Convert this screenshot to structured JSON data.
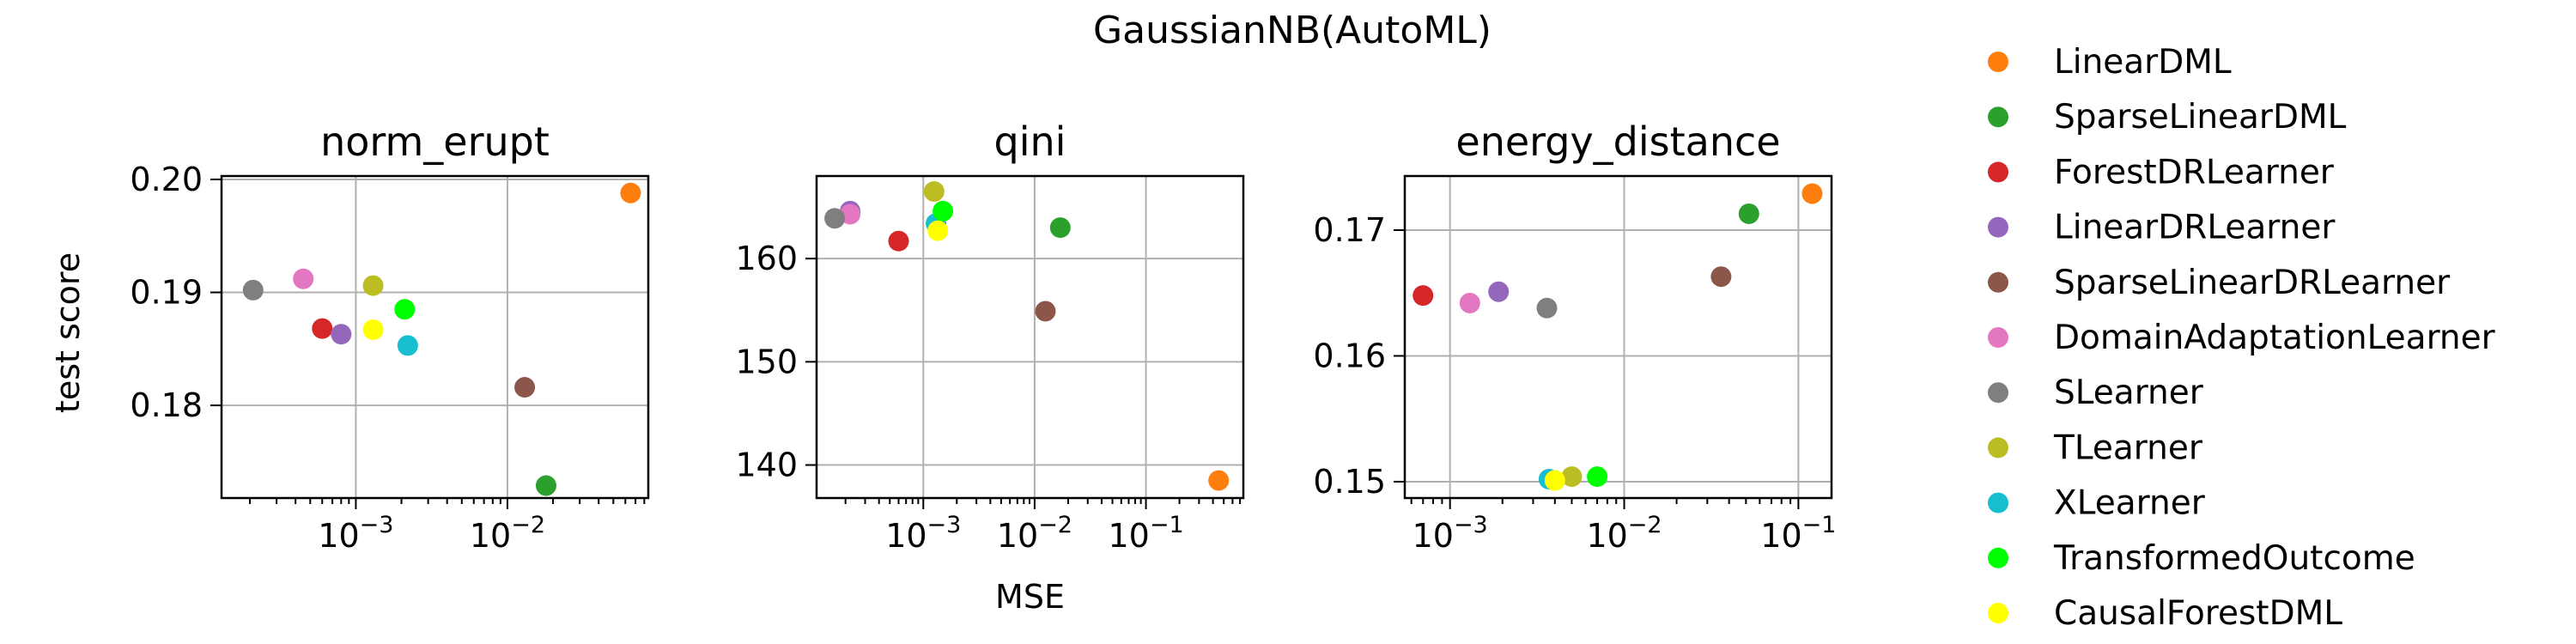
{
  "figure_title": "GaussianNB(AutoML)",
  "colors": {
    "LinearDML": "#ff7f0e",
    "SparseLinearDML": "#2ca02c",
    "ForestDRLearner": "#d62728",
    "LinearDRLearner": "#9467bd",
    "SparseLinearDRLearner": "#8c564b",
    "DomainAdaptationLearner": "#e377c2",
    "SLearner": "#7f7f7f",
    "TLearner": "#bcbd22",
    "XLearner": "#17becf",
    "TransformedOutcome": "#00ff00",
    "CausalForestDML": "#ffff00"
  },
  "legend": {
    "items": [
      "LinearDML",
      "SparseLinearDML",
      "ForestDRLearner",
      "LinearDRLearner",
      "SparseLinearDRLearner",
      "DomainAdaptationLearner",
      "SLearner",
      "TLearner",
      "XLearner",
      "TransformedOutcome",
      "CausalForestDML"
    ]
  },
  "chart_data": [
    {
      "type": "scatter",
      "title": "norm_erupt",
      "xlabel": "",
      "ylabel": "test score",
      "xscale": "log",
      "xlim": [
        0.00013,
        0.085
      ],
      "ylim": [
        0.1718,
        0.2003
      ],
      "xticks": [
        {
          "value": 0.001,
          "base": "10",
          "exp": "−3"
        },
        {
          "value": 0.01,
          "base": "10",
          "exp": "−2"
        }
      ],
      "yticks": [
        {
          "value": 0.18,
          "label": "0.18"
        },
        {
          "value": 0.19,
          "label": "0.19"
        },
        {
          "value": 0.2,
          "label": "0.20"
        }
      ],
      "grid": true,
      "points": [
        {
          "series": "LinearDML",
          "x": 0.065,
          "y": 0.1988
        },
        {
          "series": "SparseLinearDML",
          "x": 0.018,
          "y": 0.1729
        },
        {
          "series": "ForestDRLearner",
          "x": 0.0006,
          "y": 0.1868
        },
        {
          "series": "LinearDRLearner",
          "x": 0.0008,
          "y": 0.1863
        },
        {
          "series": "SparseLinearDRLearner",
          "x": 0.013,
          "y": 0.1816
        },
        {
          "series": "DomainAdaptationLearner",
          "x": 0.00045,
          "y": 0.1912
        },
        {
          "series": "SLearner",
          "x": 0.00021,
          "y": 0.1902
        },
        {
          "series": "TLearner",
          "x": 0.0013,
          "y": 0.1906
        },
        {
          "series": "XLearner",
          "x": 0.0022,
          "y": 0.1853
        },
        {
          "series": "TransformedOutcome",
          "x": 0.0021,
          "y": 0.1885
        },
        {
          "series": "CausalForestDML",
          "x": 0.0013,
          "y": 0.1867
        }
      ]
    },
    {
      "type": "scatter",
      "title": "qini",
      "xlabel": "MSE",
      "ylabel": "",
      "xscale": "log",
      "xlim": [
        0.00011,
        0.75
      ],
      "ylim": [
        136.8,
        168.0
      ],
      "xticks": [
        {
          "value": 0.001,
          "base": "10",
          "exp": "−3"
        },
        {
          "value": 0.01,
          "base": "10",
          "exp": "−2"
        },
        {
          "value": 0.1,
          "base": "10",
          "exp": "−1"
        }
      ],
      "yticks": [
        {
          "value": 140,
          "label": "140"
        },
        {
          "value": 150,
          "label": "150"
        },
        {
          "value": 160,
          "label": "160"
        }
      ],
      "grid": true,
      "points": [
        {
          "series": "LinearDML",
          "x": 0.45,
          "y": 138.5
        },
        {
          "series": "SparseLinearDML",
          "x": 0.017,
          "y": 163.0
        },
        {
          "series": "ForestDRLearner",
          "x": 0.0006,
          "y": 161.7
        },
        {
          "series": "LinearDRLearner",
          "x": 0.00022,
          "y": 164.6
        },
        {
          "series": "SparseLinearDRLearner",
          "x": 0.0125,
          "y": 154.9
        },
        {
          "series": "DomainAdaptationLearner",
          "x": 0.00022,
          "y": 164.3
        },
        {
          "series": "SLearner",
          "x": 0.00016,
          "y": 163.9
        },
        {
          "series": "TLearner",
          "x": 0.00125,
          "y": 166.5
        },
        {
          "series": "XLearner",
          "x": 0.0013,
          "y": 163.4
        },
        {
          "series": "TransformedOutcome",
          "x": 0.0015,
          "y": 164.6
        },
        {
          "series": "CausalForestDML",
          "x": 0.00135,
          "y": 162.7
        }
      ]
    },
    {
      "type": "scatter",
      "title": "energy_distance",
      "xlabel": "",
      "ylabel": "",
      "xscale": "log",
      "xlim": [
        0.00055,
        0.155
      ],
      "ylim": [
        0.1487,
        0.1743
      ],
      "xticks": [
        {
          "value": 0.001,
          "base": "10",
          "exp": "−3"
        },
        {
          "value": 0.01,
          "base": "10",
          "exp": "−2"
        },
        {
          "value": 0.1,
          "base": "10",
          "exp": "−1"
        }
      ],
      "yticks": [
        {
          "value": 0.15,
          "label": "0.15"
        },
        {
          "value": 0.16,
          "label": "0.16"
        },
        {
          "value": 0.17,
          "label": "0.17"
        }
      ],
      "grid": true,
      "points": [
        {
          "series": "LinearDML",
          "x": 0.12,
          "y": 0.1729
        },
        {
          "series": "SparseLinearDML",
          "x": 0.052,
          "y": 0.1713
        },
        {
          "series": "ForestDRLearner",
          "x": 0.0007,
          "y": 0.1648
        },
        {
          "series": "LinearDRLearner",
          "x": 0.0019,
          "y": 0.1651
        },
        {
          "series": "SparseLinearDRLearner",
          "x": 0.036,
          "y": 0.1663
        },
        {
          "series": "DomainAdaptationLearner",
          "x": 0.0013,
          "y": 0.1642
        },
        {
          "series": "SLearner",
          "x": 0.0036,
          "y": 0.1638
        },
        {
          "series": "TLearner",
          "x": 0.005,
          "y": 0.1504
        },
        {
          "series": "XLearner",
          "x": 0.0037,
          "y": 0.1502
        },
        {
          "series": "TransformedOutcome",
          "x": 0.007,
          "y": 0.1504
        },
        {
          "series": "CausalForestDML",
          "x": 0.004,
          "y": 0.1501
        }
      ]
    }
  ]
}
